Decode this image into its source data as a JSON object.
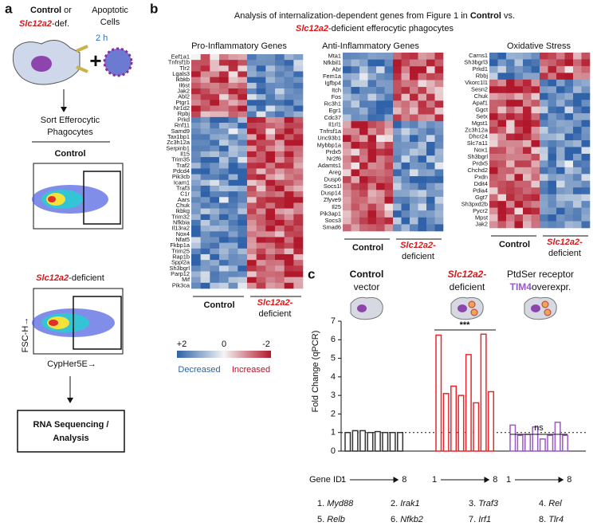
{
  "panel_a": {
    "label": "a",
    "control": "Control",
    "or": " or",
    "slc": "Slc12a2",
    "def": "-def.",
    "apoptotic_1": "Apoptotic",
    "apoptotic_2": "Cells",
    "time": "2 h",
    "sort_1": "Sort Efferocytic",
    "sort_2": "Phagocytes",
    "control_plot": "Control",
    "slc_plot": "Slc12a2",
    "slc_plot_2": "-deficient",
    "y_axis": "FSC-H→",
    "x_axis": "CypHer5E→",
    "box_1": "RNA Sequencing /",
    "box_2": "Analysis"
  },
  "panel_b": {
    "label": "b",
    "title_1": "Analysis of internalization-dependent genes from Figure 1 in ",
    "title_control": "Control",
    "title_vs": " vs.",
    "title_slc": "Slc12a2",
    "title_2": "-deficient efferocytic phagocytes",
    "group_control": "Control",
    "group_slc": "Slc12a2-",
    "group_def": "deficient",
    "heatmaps": [
      {
        "title": "Pro-Inflammatory Genes",
        "genes": [
          "Eef1a1",
          "Tnfrsf1b",
          "Tlr2",
          "Lgals3",
          "Ikbkb",
          "Il6st",
          "Jak2",
          "Abl2",
          "Ptgr1",
          "Nr1d2",
          "Rpbj",
          "Prkd",
          "Rnf11",
          "Samd9",
          "Tax1bp1",
          "Zc3h12a",
          "Serpinb1",
          "Il15",
          "Trim35",
          "Traf2",
          "Pdcd4",
          "Pik3cb",
          "Icam1",
          "Traf3",
          "C1r",
          "Aars",
          "Chuk",
          "Ikbkg",
          "Trim32",
          "Nfkbia",
          "Il13ra2",
          "Nox4",
          "Nfat5",
          "Fkbp1a",
          "Trim25",
          "Rap1b",
          "Sppl2a",
          "Sh3bgrl",
          "Parp12",
          "Mif",
          "Pik3ca"
        ]
      },
      {
        "title": "Anti-Inflammatory Genes",
        "genes": [
          "Mta1",
          "Nfkbil1",
          "Abr",
          "Fem1a",
          "Igfbp4",
          "Itch",
          "Fos",
          "Rc3h1",
          "Egr1",
          "Cdc37",
          "Il1rl1",
          "Tnfrsf1a",
          "Unc93b1",
          "Mybbp1a",
          "Prdx5",
          "Nr2f6",
          "Adamts1",
          "Areg",
          "Dusp6",
          "Socs1l",
          "Dusp14",
          "Zfyve9",
          "Il25",
          "Pik3ap1",
          "Socs3",
          "Smad6"
        ]
      },
      {
        "title": "Oxidative Stress",
        "genes": [
          "Carns1",
          "Sh3bgrl3",
          "Prkd1",
          "Rbbj",
          "Vkorc1l1",
          "Sesn2",
          "Chuk",
          "Apaf1",
          "Ggct",
          "Setx",
          "Mgst1",
          "Zc3h12a",
          "Dhcr24",
          "Slc7a11",
          "Nox1",
          "Sh3bgrl",
          "Prdx5",
          "Chchd2",
          "Pxdn",
          "Ddit4",
          "Pdia4",
          "Ggt7",
          "Sh3pxd2b",
          "Pycr2",
          "Mpst",
          "Jak2"
        ]
      }
    ],
    "scale_labels": [
      "+2",
      "0",
      "-2"
    ],
    "decreased": "Decreased",
    "increased": "Increased"
  },
  "chart_data": {
    "type": "bar",
    "label": "c",
    "y_label": "Fold Change (qPCR)",
    "ylim": [
      0,
      7
    ],
    "yticks": [
      0,
      1,
      2,
      3,
      4,
      5,
      6,
      7
    ],
    "reference_line": 1,
    "series": [
      {
        "name": [
          "Control",
          "vector"
        ],
        "color": "#333333",
        "values": [
          1.0,
          1.1,
          1.1,
          1.0,
          1.05,
          1.0,
          1.0,
          1.0
        ]
      },
      {
        "name": [
          "Slc12a2-",
          "deficient"
        ],
        "color": "#e8262b",
        "values": [
          6.25,
          3.1,
          3.5,
          3.0,
          5.2,
          2.6,
          6.3,
          3.2
        ]
      },
      {
        "name": [
          "PtdSer receptor",
          "TIM4",
          "overexpr."
        ],
        "color": "#9b59c6",
        "values": [
          1.4,
          0.85,
          0.9,
          1.3,
          0.65,
          0.85,
          1.55,
          0.85
        ]
      }
    ],
    "significance": [
      "***",
      "ns"
    ],
    "gene_id_label": "Gene ID:",
    "gene_id_ends": [
      "1",
      "8"
    ],
    "gene_legend": [
      [
        "1.",
        "Myd88"
      ],
      [
        "2.",
        "Irak1"
      ],
      [
        "3.",
        "Traf3"
      ],
      [
        "4.",
        "Rel"
      ],
      [
        "5.",
        "Relb"
      ],
      [
        "6.",
        "Nfkb2"
      ],
      [
        "7.",
        "Irf1"
      ],
      [
        "8.",
        "Tlr4"
      ]
    ]
  }
}
